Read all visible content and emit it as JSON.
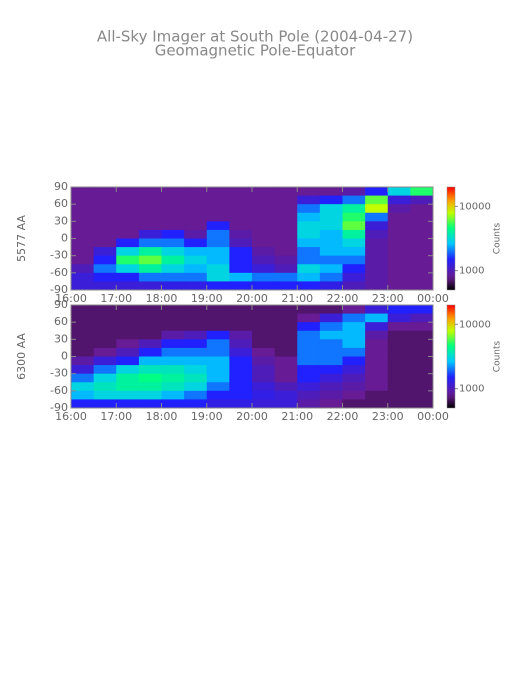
{
  "chart_data": [
    {
      "type": "heatmap",
      "title": "All-Sky Imager at South Pole (2004-04-27)",
      "subtitle": "Geomagnetic Pole-Equator",
      "ylabel": "5577 AA",
      "colorbar_label": "Counts",
      "zscale": "log",
      "xlim": [
        16,
        24
      ],
      "xticks": [
        {
          "value": 16,
          "label": "16:00"
        },
        {
          "value": 17,
          "label": "17:00"
        },
        {
          "value": 18,
          "label": "18:00"
        },
        {
          "value": 19,
          "label": "19:00"
        },
        {
          "value": 20,
          "label": "20:00"
        },
        {
          "value": 21,
          "label": "21:00"
        },
        {
          "value": 22,
          "label": "22:00"
        },
        {
          "value": 23,
          "label": "23:00"
        },
        {
          "value": 24,
          "label": "00:00"
        }
      ],
      "ylim": [
        -90,
        90
      ],
      "yticks": [
        90,
        60,
        30,
        0,
        -30,
        -60,
        -90
      ],
      "zlim": [
        500,
        20000
      ],
      "zticks": [
        1000,
        10000
      ],
      "x": [
        16.25,
        16.75,
        17.25,
        17.75,
        18.25,
        18.75,
        19.25,
        19.75,
        20.25,
        20.75,
        21.25,
        21.75,
        22.25,
        22.75,
        23.25,
        23.75
      ],
      "y": [
        82.5,
        67.5,
        52.5,
        37.5,
        22.5,
        7.5,
        -7.5,
        -22.5,
        -37.5,
        -52.5,
        -67.5,
        -82.5
      ],
      "z": [
        [
          800,
          800,
          800,
          800,
          800,
          800,
          800,
          800,
          800,
          800,
          800,
          800,
          900,
          1500,
          3000,
          5000
        ],
        [
          800,
          800,
          800,
          800,
          800,
          800,
          800,
          800,
          800,
          800,
          1200,
          1500,
          2000,
          6000,
          1200,
          1000
        ],
        [
          800,
          800,
          800,
          800,
          800,
          800,
          800,
          800,
          800,
          800,
          2000,
          3000,
          4000,
          8000,
          900,
          800
        ],
        [
          800,
          800,
          800,
          800,
          800,
          800,
          800,
          800,
          800,
          800,
          2500,
          3000,
          5000,
          2000,
          800,
          800
        ],
        [
          800,
          800,
          800,
          800,
          800,
          800,
          1500,
          800,
          800,
          800,
          3000,
          3000,
          6000,
          1200,
          800,
          800
        ],
        [
          800,
          800,
          800,
          1200,
          1500,
          900,
          2000,
          900,
          800,
          800,
          3000,
          2500,
          4000,
          1000,
          800,
          800
        ],
        [
          800,
          800,
          1500,
          2000,
          2000,
          1500,
          2000,
          1000,
          800,
          800,
          2500,
          2500,
          3000,
          900,
          800,
          800
        ],
        [
          800,
          1200,
          3000,
          4000,
          3000,
          2500,
          2500,
          1500,
          900,
          800,
          2000,
          2500,
          2500,
          900,
          800,
          800
        ],
        [
          800,
          1500,
          5000,
          6000,
          4000,
          3000,
          2500,
          1500,
          1000,
          900,
          2000,
          2000,
          2000,
          900,
          800,
          800
        ],
        [
          1000,
          2000,
          3000,
          4000,
          3000,
          2500,
          3000,
          1500,
          1200,
          1000,
          3000,
          2500,
          1500,
          900,
          800,
          800
        ],
        [
          1200,
          1500,
          1500,
          2000,
          2000,
          2000,
          3000,
          2500,
          2000,
          2000,
          2500,
          2000,
          1200,
          900,
          800,
          800
        ],
        [
          1200,
          1200,
          1200,
          1200,
          1300,
          1300,
          1500,
          1500,
          1500,
          1500,
          1500,
          1300,
          1000,
          900,
          800,
          800
        ]
      ]
    },
    {
      "type": "heatmap",
      "ylabel": "6300 AA",
      "colorbar_label": "Counts",
      "zscale": "log",
      "xlim": [
        16,
        24
      ],
      "xticks": [
        {
          "value": 16,
          "label": "16:00"
        },
        {
          "value": 17,
          "label": "17:00"
        },
        {
          "value": 18,
          "label": "18:00"
        },
        {
          "value": 19,
          "label": "19:00"
        },
        {
          "value": 20,
          "label": "20:00"
        },
        {
          "value": 21,
          "label": "21:00"
        },
        {
          "value": 22,
          "label": "22:00"
        },
        {
          "value": 23,
          "label": "23:00"
        },
        {
          "value": 24,
          "label": "00:00"
        }
      ],
      "ylim": [
        -90,
        90
      ],
      "yticks": [
        90,
        60,
        30,
        0,
        -30,
        -60,
        -90
      ],
      "zlim": [
        500,
        20000
      ],
      "zticks": [
        1000,
        10000
      ],
      "x": [
        16.25,
        16.75,
        17.25,
        17.75,
        18.25,
        18.75,
        19.25,
        19.75,
        20.25,
        20.75,
        21.25,
        21.75,
        22.25,
        22.75,
        23.25,
        23.75
      ],
      "y": [
        82.5,
        67.5,
        52.5,
        37.5,
        22.5,
        7.5,
        -7.5,
        -22.5,
        -37.5,
        -52.5,
        -67.5,
        -82.5
      ],
      "z": [
        [
          700,
          700,
          700,
          700,
          700,
          700,
          700,
          700,
          700,
          700,
          700,
          700,
          800,
          1200,
          1500,
          1500
        ],
        [
          700,
          700,
          700,
          700,
          700,
          700,
          700,
          700,
          700,
          700,
          800,
          1200,
          2000,
          2500,
          1200,
          1000
        ],
        [
          700,
          700,
          700,
          700,
          700,
          700,
          700,
          700,
          700,
          700,
          1500,
          2000,
          2500,
          1200,
          800,
          800
        ],
        [
          700,
          700,
          700,
          700,
          900,
          1000,
          1500,
          900,
          700,
          700,
          2000,
          2500,
          2500,
          900,
          700,
          700
        ],
        [
          700,
          700,
          800,
          1000,
          1500,
          1500,
          2000,
          1000,
          700,
          700,
          2000,
          2000,
          2500,
          800,
          700,
          700
        ],
        [
          700,
          800,
          1000,
          1500,
          2000,
          2000,
          2000,
          1200,
          800,
          700,
          2000,
          2000,
          2000,
          800,
          700,
          700
        ],
        [
          900,
          1200,
          1500,
          2500,
          2500,
          2500,
          2500,
          1500,
          900,
          800,
          2000,
          2000,
          1500,
          800,
          700,
          700
        ],
        [
          1200,
          2000,
          3000,
          3500,
          3500,
          3000,
          2500,
          1500,
          1000,
          800,
          1500,
          1500,
          1200,
          800,
          700,
          700
        ],
        [
          2000,
          3000,
          4000,
          4500,
          4000,
          3500,
          2500,
          1500,
          1000,
          800,
          1500,
          1200,
          1000,
          800,
          700,
          700
        ],
        [
          3000,
          3500,
          4000,
          4000,
          3500,
          3000,
          2000,
          1500,
          1200,
          1000,
          1200,
          1000,
          900,
          800,
          700,
          700
        ],
        [
          2500,
          3000,
          3000,
          3000,
          2500,
          2000,
          1500,
          1500,
          1300,
          1200,
          1000,
          900,
          800,
          700,
          700,
          700
        ],
        [
          1500,
          1500,
          1500,
          1500,
          1500,
          1500,
          1300,
          1300,
          1200,
          1200,
          900,
          800,
          700,
          700,
          700,
          700
        ]
      ]
    }
  ]
}
